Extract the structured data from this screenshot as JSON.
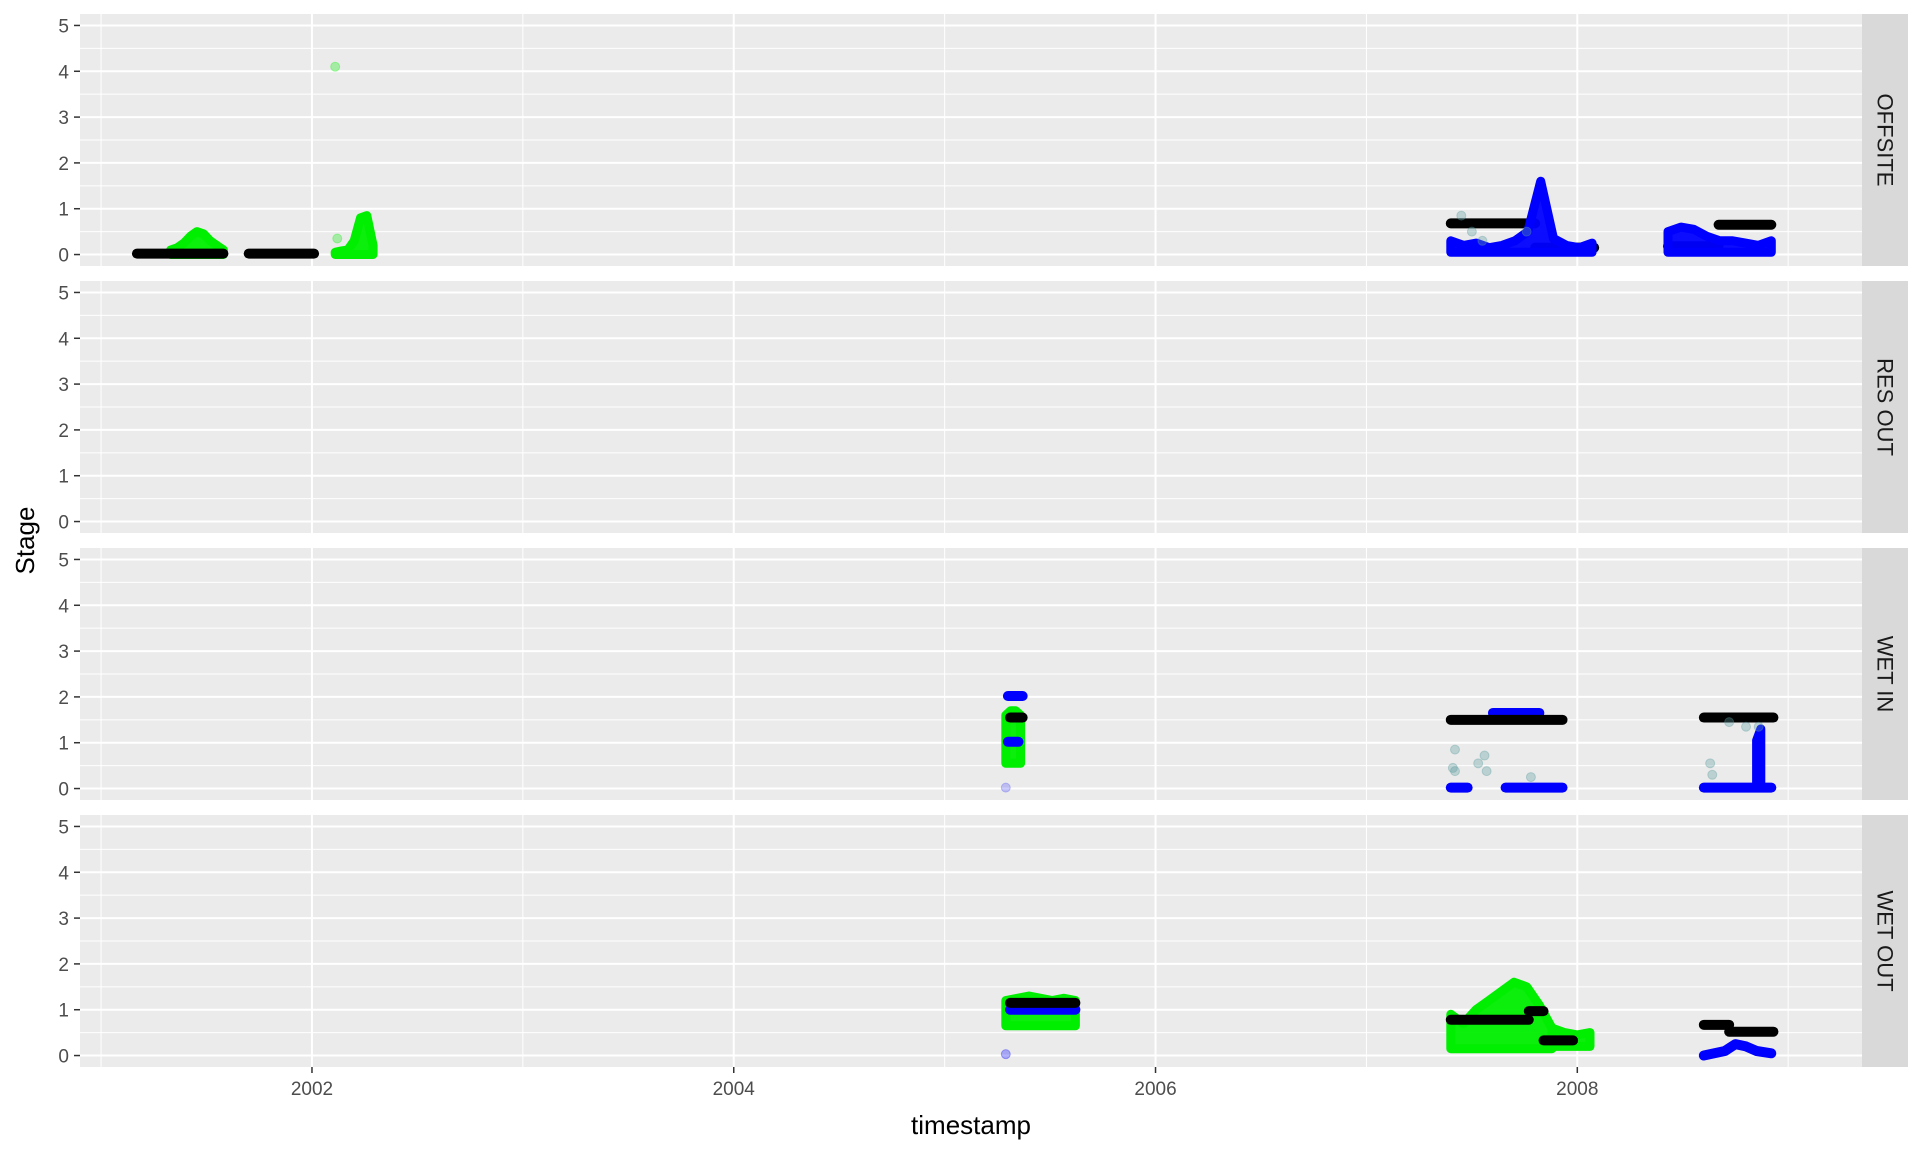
{
  "chart_data": {
    "type": "scatter",
    "xlabel": "timestamp",
    "ylabel": "Stage",
    "xlim": [
      2000.9,
      2009.35
    ],
    "ylim": [
      -0.25,
      5.25
    ],
    "x_ticks": [
      2002,
      2004,
      2006,
      2008
    ],
    "x_tick_labels": [
      "2002",
      "2004",
      "2006",
      "2008"
    ],
    "y_ticks": [
      0,
      1,
      2,
      3,
      4,
      5
    ],
    "y_tick_labels": [
      "0",
      "1",
      "2",
      "3",
      "4",
      "5"
    ],
    "grid": true,
    "legend": "none",
    "colors": {
      "green": "#00ee00",
      "blue": "#0000ff",
      "black": "#000000",
      "teal": "#5f9ea0",
      "panel_bg": "#ebebeb",
      "strip_bg": "#d9d9d9",
      "grid": "#ffffff"
    },
    "panels": [
      {
        "label": "OFFSITE",
        "series": [
          {
            "color": "green",
            "style": "band",
            "segments": [
              {
                "x0": 2001.33,
                "x1": 2001.58,
                "bottom": 0.0,
                "tops": [
                  0.1,
                  0.15,
                  0.25,
                  0.4,
                  0.5,
                  0.45,
                  0.3,
                  0.2,
                  0.1
                ]
              },
              {
                "x0": 2002.11,
                "x1": 2002.29,
                "bottom": 0.0,
                "tops": [
                  0.05,
                  0.08,
                  0.1,
                  0.3,
                  0.8,
                  0.85,
                  0.2
                ]
              }
            ]
          },
          {
            "color": "green",
            "style": "points",
            "alpha": 0.3,
            "points": [
              [
                2002.11,
                4.1
              ],
              [
                2002.12,
                0.35
              ]
            ]
          },
          {
            "color": "black",
            "style": "segments",
            "segments": [
              [
                2001.17,
                2001.58,
                0.02
              ],
              [
                2001.7,
                2002.01,
                0.02
              ],
              [
                2007.4,
                2007.8,
                0.68
              ],
              [
                2007.8,
                2008.08,
                0.15
              ],
              [
                2008.43,
                2008.67,
                0.18
              ],
              [
                2008.67,
                2008.92,
                0.65
              ]
            ]
          },
          {
            "color": "blue",
            "style": "band",
            "segments": [
              {
                "x0": 2007.4,
                "x1": 2008.07,
                "bottom": 0.05,
                "tops": [
                  0.3,
                  0.2,
                  0.25,
                  0.15,
                  0.2,
                  0.3,
                  0.5,
                  1.6,
                  0.35,
                  0.2,
                  0.15,
                  0.25
                ]
              },
              {
                "x0": 2008.43,
                "x1": 2008.92,
                "bottom": 0.05,
                "tops": [
                  0.5,
                  0.6,
                  0.55,
                  0.4,
                  0.3,
                  0.3,
                  0.25,
                  0.2,
                  0.3
                ]
              }
            ]
          },
          {
            "color": "teal",
            "style": "points",
            "alpha": 0.35,
            "points": [
              [
                2007.45,
                0.85
              ],
              [
                2007.5,
                0.5
              ],
              [
                2007.55,
                0.3
              ],
              [
                2007.76,
                0.5
              ]
            ]
          }
        ]
      },
      {
        "label": "RES OUT",
        "series": []
      },
      {
        "label": "WET IN",
        "series": [
          {
            "color": "green",
            "style": "band",
            "segments": [
              {
                "x0": 2005.29,
                "x1": 2005.36,
                "bottom": 0.55,
                "tops": [
                  1.6,
                  1.7,
                  1.7,
                  1.6
                ]
              }
            ]
          },
          {
            "color": "blue",
            "style": "segments",
            "segments": [
              [
                2005.3,
                2005.37,
                2.02
              ],
              [
                2005.3,
                2005.35,
                1.02
              ],
              [
                2007.6,
                2007.82,
                1.65
              ],
              [
                2007.4,
                2007.48,
                0.02
              ],
              [
                2007.66,
                2007.93,
                0.02
              ],
              [
                2008.6,
                2008.92,
                0.02
              ]
            ]
          },
          {
            "color": "blue",
            "style": "band",
            "segments": [
              {
                "x0": 2008.85,
                "x1": 2008.87,
                "bottom": 0.02,
                "tops": [
                  1.05,
                  1.3
                ]
              }
            ]
          },
          {
            "color": "black",
            "style": "segments",
            "segments": [
              [
                2005.31,
                2005.37,
                1.55
              ],
              [
                2007.4,
                2007.93,
                1.5
              ],
              [
                2008.6,
                2008.93,
                1.55
              ]
            ]
          },
          {
            "color": "teal",
            "style": "points",
            "alpha": 0.35,
            "points": [
              [
                2007.42,
                0.85
              ],
              [
                2007.41,
                0.45
              ],
              [
                2007.42,
                0.38
              ],
              [
                2007.53,
                0.55
              ],
              [
                2007.56,
                0.72
              ],
              [
                2007.57,
                0.38
              ],
              [
                2007.78,
                0.25
              ],
              [
                2008.63,
                0.55
              ],
              [
                2008.64,
                0.3
              ],
              [
                2008.72,
                1.45
              ],
              [
                2008.8,
                1.35
              ],
              [
                2008.86,
                1.35
              ]
            ]
          },
          {
            "color": "blue",
            "style": "points",
            "alpha": 0.2,
            "points": [
              [
                2005.29,
                0.02
              ]
            ]
          }
        ]
      },
      {
        "label": "WET OUT",
        "series": [
          {
            "color": "green",
            "style": "band",
            "segments": [
              {
                "x0": 2005.29,
                "x1": 2005.62,
                "bottom": 0.65,
                "tops": [
                  1.2,
                  1.25,
                  1.3,
                  1.25,
                  1.2,
                  1.25,
                  1.2
                ]
              },
              {
                "x0": 2007.4,
                "x1": 2007.88,
                "bottom": 0.15,
                "tops": [
                  0.9,
                  0.7,
                  1.0,
                  1.2,
                  1.4,
                  1.6,
                  1.5,
                  1.1,
                  0.6
                ]
              },
              {
                "x0": 2007.88,
                "x1": 2008.06,
                "bottom": 0.2,
                "tops": [
                  0.6,
                  0.5,
                  0.45,
                  0.5
                ]
              }
            ]
          },
          {
            "color": "blue",
            "style": "segments",
            "segments": [
              [
                2005.31,
                2005.62,
                1.0
              ]
            ]
          },
          {
            "color": "blue",
            "style": "line",
            "points": [
              [
                2008.6,
                0.0
              ],
              [
                2008.7,
                0.1
              ],
              [
                2008.75,
                0.25
              ],
              [
                2008.8,
                0.2
              ],
              [
                2008.85,
                0.1
              ],
              [
                2008.92,
                0.05
              ]
            ]
          },
          {
            "color": "black",
            "style": "segments",
            "segments": [
              [
                2005.31,
                2005.62,
                1.15
              ],
              [
                2007.4,
                2007.77,
                0.78
              ],
              [
                2007.77,
                2007.84,
                0.97
              ],
              [
                2007.84,
                2007.98,
                0.33
              ],
              [
                2008.6,
                2008.72,
                0.67
              ],
              [
                2008.72,
                2008.93,
                0.52
              ]
            ]
          },
          {
            "color": "blue",
            "style": "points",
            "alpha": 0.3,
            "points": [
              [
                2005.29,
                0.03
              ]
            ]
          }
        ]
      }
    ]
  }
}
